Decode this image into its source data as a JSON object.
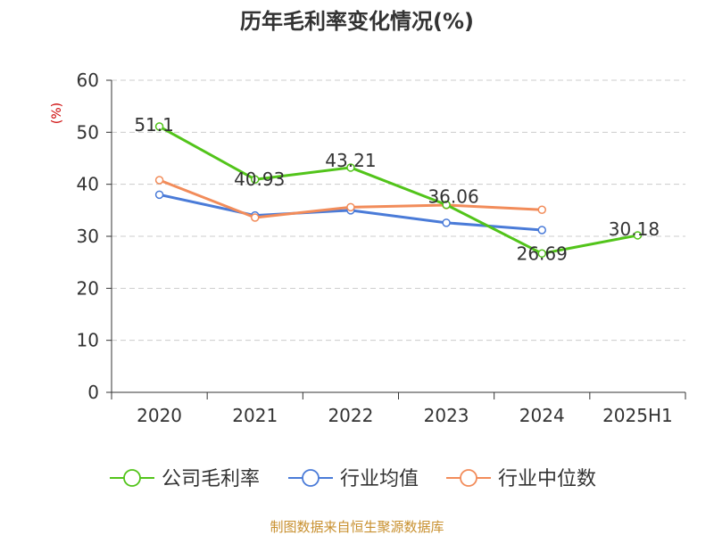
{
  "chart_data": {
    "type": "line",
    "title": "历年毛利率变化情况(%)",
    "ylabel": "(%)",
    "categories": [
      "2020",
      "2021",
      "2022",
      "2023",
      "2024",
      "2025H1"
    ],
    "ylim": [
      0,
      60
    ],
    "yticks": [
      0,
      10,
      20,
      30,
      40,
      50,
      60
    ],
    "grid": true,
    "legend_position": "bottom",
    "series": [
      {
        "name": "公司毛利率",
        "color": "#52c41a",
        "values": [
          51.1,
          40.93,
          43.21,
          36.06,
          26.69,
          30.18
        ],
        "labels": [
          "51.1",
          "40.93",
          "43.21",
          "36.06",
          "26.69",
          "30.18"
        ]
      },
      {
        "name": "行业均值",
        "color": "#4a7bd8",
        "values": [
          38.0,
          34.0,
          35.0,
          32.6,
          31.2,
          null
        ]
      },
      {
        "name": "行业中位数",
        "color": "#f28c5a",
        "values": [
          40.8,
          33.6,
          35.6,
          36.0,
          35.1,
          null
        ]
      }
    ],
    "source": "制图数据来自恒生聚源数据库"
  }
}
